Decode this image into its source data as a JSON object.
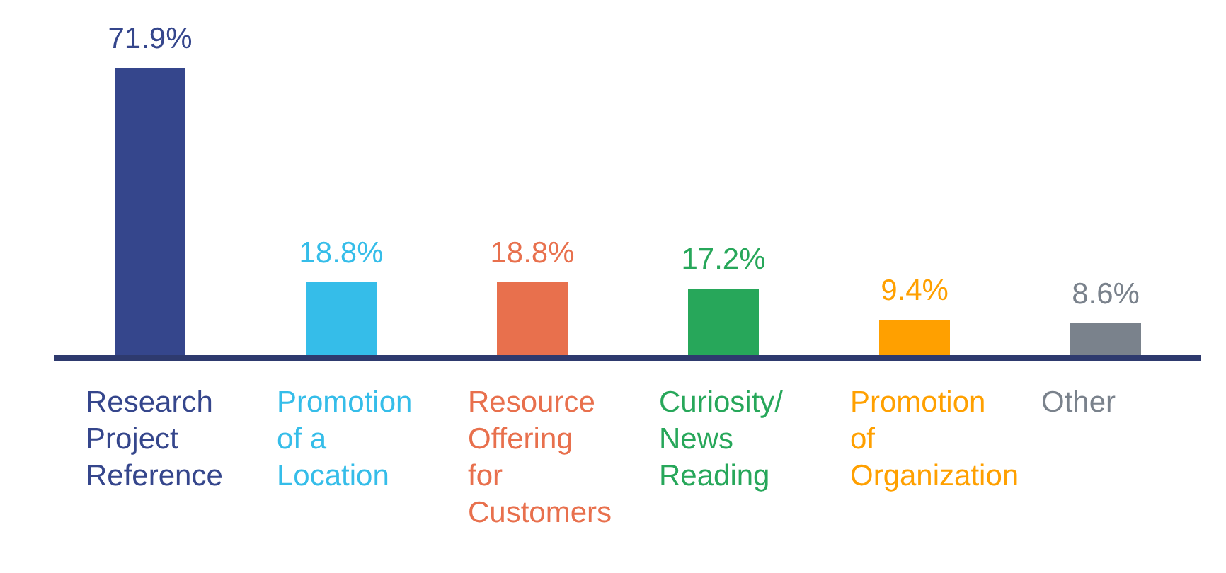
{
  "chart_data": {
    "type": "bar",
    "categories": [
      "Research Project Reference",
      "Promotion of a Location",
      "Resource Offering for Customers",
      "Curiosity/ News Reading",
      "Promotion of Organization",
      "Other"
    ],
    "values": [
      71.9,
      18.8,
      18.8,
      17.2,
      9.4,
      8.6
    ],
    "colors": [
      "#35468c",
      "#35bde9",
      "#e8704d",
      "#27a75a",
      "#ffa000",
      "#7a828c"
    ],
    "value_labels": [
      "71.9%",
      "18.8%",
      "18.8%",
      "17.2%",
      "9.4%",
      "8.6%"
    ],
    "grid": false,
    "legend": false
  }
}
